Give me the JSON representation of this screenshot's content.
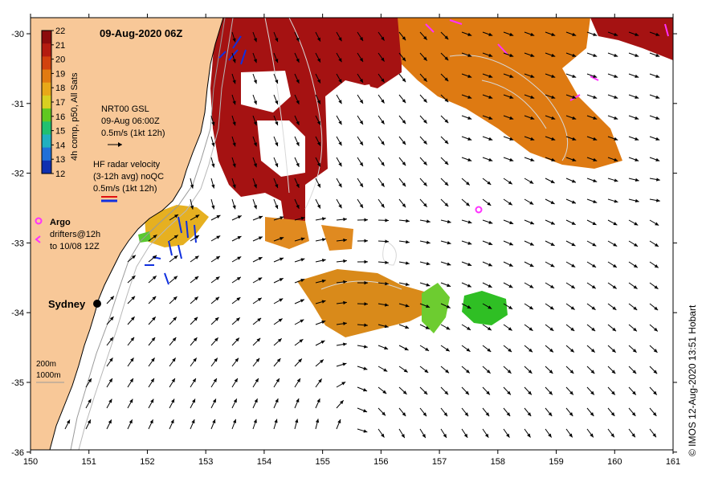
{
  "map": {
    "title": "09-Aug-2020 06Z",
    "credit": "© IMOS 12-Aug-2020 13:51 Hobart",
    "x_ticks": [
      "150",
      "151",
      "152",
      "153",
      "154",
      "155",
      "156",
      "157",
      "158",
      "159",
      "160",
      "161"
    ],
    "y_ticks": [
      "-30",
      "-31",
      "-32",
      "-33",
      "-34",
      "-35",
      "-36"
    ],
    "lon_range": [
      150,
      161
    ],
    "lat_range": [
      -36,
      -29.8
    ],
    "city": "Sydney",
    "colors": {
      "land": "#f8c898",
      "ocean": "#ffffff",
      "hot": "#a01010",
      "warm": "#e07a10",
      "mid": "#e8b020",
      "cool": "#30c020",
      "radar": "#1030e0",
      "drifter": "#ff30ff"
    }
  },
  "colorbar": {
    "label": "4h comp, p50, All Sats",
    "ticks": [
      "22",
      "21",
      "20",
      "19",
      "18",
      "17",
      "16",
      "15",
      "14",
      "13",
      "12"
    ],
    "colors": [
      "#8c0c0c",
      "#b41c10",
      "#d2420e",
      "#e27a10",
      "#e8a818",
      "#d8d020",
      "#60c820",
      "#20c070",
      "#20b0c0",
      "#2070d8",
      "#1030b0"
    ]
  },
  "legend": {
    "gsl_title": "NRT00 GSL",
    "gsl_time": "09-Aug 06:00Z",
    "gsl_scale": "0.5m/s (1kt 12h)",
    "radar_title": "HF radar velocity",
    "radar_avg": "(3-12h avg) noQC",
    "radar_scale": "0.5m/s (1kt 12h)",
    "argo_label": "Argo",
    "drifters_label": "drifters@12h",
    "drifters_to": "to 10/08 12Z",
    "iso_200": "200m",
    "iso_1000": "1000m"
  }
}
